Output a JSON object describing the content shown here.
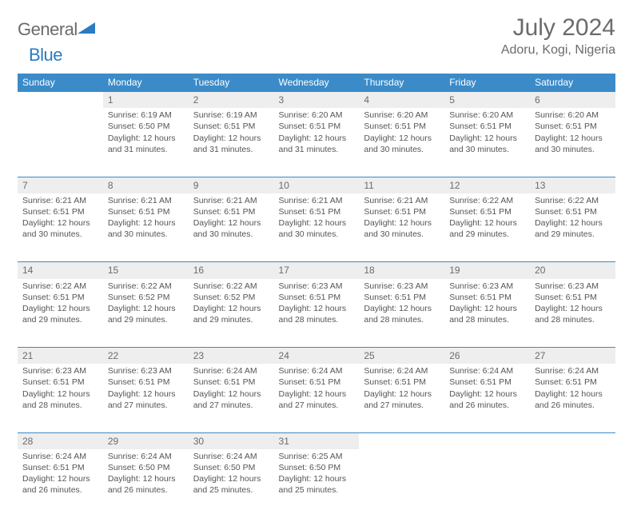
{
  "brand": {
    "name1": "General",
    "name2": "Blue"
  },
  "title": "July 2024",
  "location": "Adoru, Kogi, Nigeria",
  "colors": {
    "header_bg": "#3b8bc8",
    "header_text": "#ffffff",
    "daynum_bg": "#eeeeee",
    "rule": "#3b8bc8",
    "text": "#555555",
    "brand_gray": "#6b6b6b",
    "brand_blue": "#2b7bbf",
    "page_bg": "#ffffff"
  },
  "weekdays": [
    "Sunday",
    "Monday",
    "Tuesday",
    "Wednesday",
    "Thursday",
    "Friday",
    "Saturday"
  ],
  "weeks": [
    [
      null,
      {
        "n": "1",
        "sr": "6:19 AM",
        "ss": "6:50 PM",
        "dl": "12 hours and 31 minutes."
      },
      {
        "n": "2",
        "sr": "6:19 AM",
        "ss": "6:51 PM",
        "dl": "12 hours and 31 minutes."
      },
      {
        "n": "3",
        "sr": "6:20 AM",
        "ss": "6:51 PM",
        "dl": "12 hours and 31 minutes."
      },
      {
        "n": "4",
        "sr": "6:20 AM",
        "ss": "6:51 PM",
        "dl": "12 hours and 30 minutes."
      },
      {
        "n": "5",
        "sr": "6:20 AM",
        "ss": "6:51 PM",
        "dl": "12 hours and 30 minutes."
      },
      {
        "n": "6",
        "sr": "6:20 AM",
        "ss": "6:51 PM",
        "dl": "12 hours and 30 minutes."
      }
    ],
    [
      {
        "n": "7",
        "sr": "6:21 AM",
        "ss": "6:51 PM",
        "dl": "12 hours and 30 minutes."
      },
      {
        "n": "8",
        "sr": "6:21 AM",
        "ss": "6:51 PM",
        "dl": "12 hours and 30 minutes."
      },
      {
        "n": "9",
        "sr": "6:21 AM",
        "ss": "6:51 PM",
        "dl": "12 hours and 30 minutes."
      },
      {
        "n": "10",
        "sr": "6:21 AM",
        "ss": "6:51 PM",
        "dl": "12 hours and 30 minutes."
      },
      {
        "n": "11",
        "sr": "6:21 AM",
        "ss": "6:51 PM",
        "dl": "12 hours and 30 minutes."
      },
      {
        "n": "12",
        "sr": "6:22 AM",
        "ss": "6:51 PM",
        "dl": "12 hours and 29 minutes."
      },
      {
        "n": "13",
        "sr": "6:22 AM",
        "ss": "6:51 PM",
        "dl": "12 hours and 29 minutes."
      }
    ],
    [
      {
        "n": "14",
        "sr": "6:22 AM",
        "ss": "6:51 PM",
        "dl": "12 hours and 29 minutes."
      },
      {
        "n": "15",
        "sr": "6:22 AM",
        "ss": "6:52 PM",
        "dl": "12 hours and 29 minutes."
      },
      {
        "n": "16",
        "sr": "6:22 AM",
        "ss": "6:52 PM",
        "dl": "12 hours and 29 minutes."
      },
      {
        "n": "17",
        "sr": "6:23 AM",
        "ss": "6:51 PM",
        "dl": "12 hours and 28 minutes."
      },
      {
        "n": "18",
        "sr": "6:23 AM",
        "ss": "6:51 PM",
        "dl": "12 hours and 28 minutes."
      },
      {
        "n": "19",
        "sr": "6:23 AM",
        "ss": "6:51 PM",
        "dl": "12 hours and 28 minutes."
      },
      {
        "n": "20",
        "sr": "6:23 AM",
        "ss": "6:51 PM",
        "dl": "12 hours and 28 minutes."
      }
    ],
    [
      {
        "n": "21",
        "sr": "6:23 AM",
        "ss": "6:51 PM",
        "dl": "12 hours and 28 minutes."
      },
      {
        "n": "22",
        "sr": "6:23 AM",
        "ss": "6:51 PM",
        "dl": "12 hours and 27 minutes."
      },
      {
        "n": "23",
        "sr": "6:24 AM",
        "ss": "6:51 PM",
        "dl": "12 hours and 27 minutes."
      },
      {
        "n": "24",
        "sr": "6:24 AM",
        "ss": "6:51 PM",
        "dl": "12 hours and 27 minutes."
      },
      {
        "n": "25",
        "sr": "6:24 AM",
        "ss": "6:51 PM",
        "dl": "12 hours and 27 minutes."
      },
      {
        "n": "26",
        "sr": "6:24 AM",
        "ss": "6:51 PM",
        "dl": "12 hours and 26 minutes."
      },
      {
        "n": "27",
        "sr": "6:24 AM",
        "ss": "6:51 PM",
        "dl": "12 hours and 26 minutes."
      }
    ],
    [
      {
        "n": "28",
        "sr": "6:24 AM",
        "ss": "6:51 PM",
        "dl": "12 hours and 26 minutes."
      },
      {
        "n": "29",
        "sr": "6:24 AM",
        "ss": "6:50 PM",
        "dl": "12 hours and 26 minutes."
      },
      {
        "n": "30",
        "sr": "6:24 AM",
        "ss": "6:50 PM",
        "dl": "12 hours and 25 minutes."
      },
      {
        "n": "31",
        "sr": "6:25 AM",
        "ss": "6:50 PM",
        "dl": "12 hours and 25 minutes."
      },
      null,
      null,
      null
    ]
  ],
  "labels": {
    "sunrise": "Sunrise:",
    "sunset": "Sunset:",
    "daylight": "Daylight:"
  }
}
